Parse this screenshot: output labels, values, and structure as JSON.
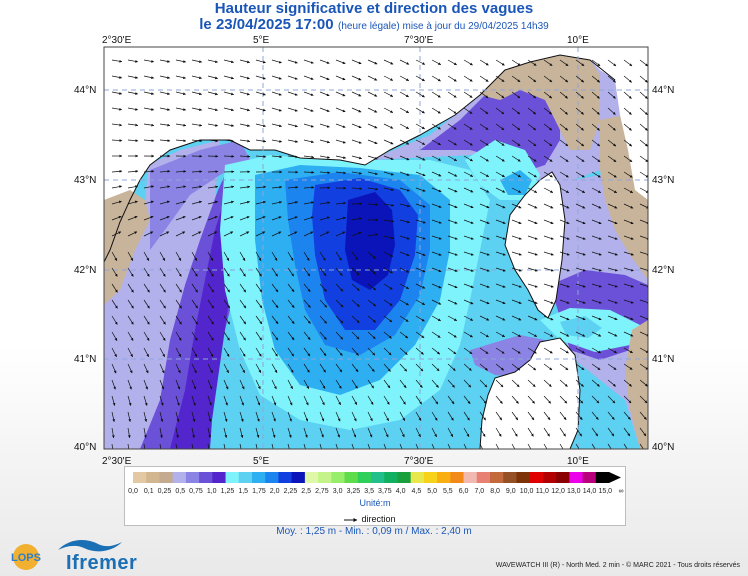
{
  "title": "Hauteur significative et direction des vagues",
  "subtitle": {
    "date": "le 23/04/2025 17:00",
    "note": "(heure légale) mise à jour du 29/04/2025 14h39"
  },
  "axes": {
    "lon_labels": [
      "2°30'E",
      "5°E",
      "7°30'E",
      "10°E"
    ],
    "lat_labels": [
      "44°N",
      "43°N",
      "42°N",
      "41°N",
      "40°N"
    ]
  },
  "legend": {
    "colors": [
      "#e3c9a3",
      "#d2b690",
      "#c4aa8f",
      "#b3b1ec",
      "#8c84e4",
      "#6b50d8",
      "#5226cc",
      "#7ef3fb",
      "#5dd1f2",
      "#2eaff2",
      "#1c84ef",
      "#123fe0",
      "#0a14b8",
      "#dff8a8",
      "#c4f38a",
      "#96ee6a",
      "#5edc4c",
      "#2fcf5c",
      "#22bf8a",
      "#10b060",
      "#19a03c",
      "#e8e84c",
      "#f6d21a",
      "#f9ae12",
      "#f28a1a",
      "#f2b9b0",
      "#e88074",
      "#c26a3c",
      "#965026",
      "#7e3208",
      "#e00000",
      "#b20000",
      "#8a0000",
      "#ec00ec",
      "#b8007c",
      "#000000"
    ],
    "ticks": [
      "0,0",
      "0,1",
      "0,25",
      "0,5",
      "0,75",
      "1,0",
      "1,25",
      "1,5",
      "1,75",
      "2,0",
      "2,25",
      "2,5",
      "2,75",
      "3,0",
      "3,25",
      "3,5",
      "3,75",
      "4,0",
      "4,5",
      "5,0",
      "5,5",
      "6,0",
      "7,0",
      "8,0",
      "9,0",
      "10,0",
      "11,0",
      "12,0",
      "13,0",
      "14,0",
      "15,0",
      "∞"
    ],
    "unit": "Unité:m",
    "direction_label": "direction"
  },
  "stats": "Moy. : 1,25 m   -   Min. : 0,09 m / Max. : 2,40 m",
  "footer": "WAVEWATCH III (R) - North Med. 2 min - © MARC 2021 - Tous droits réservés",
  "logos": {
    "lops": "LOPS",
    "ifremer": "Ifremer"
  },
  "map": {
    "colors": {
      "land": "#c8b49a",
      "very_low": "#b3b1ec",
      "low": "#8c84e4",
      "lowmid": "#6b50d8",
      "mid_dark": "#5226cc",
      "cyan": "#7ef3fb",
      "blue1": "#5dd1f2",
      "blue2": "#2eaff2",
      "blue3": "#1c84ef",
      "blue4": "#123fe0",
      "blue5": "#0a14b8",
      "grid": "#8fa6d8"
    }
  }
}
